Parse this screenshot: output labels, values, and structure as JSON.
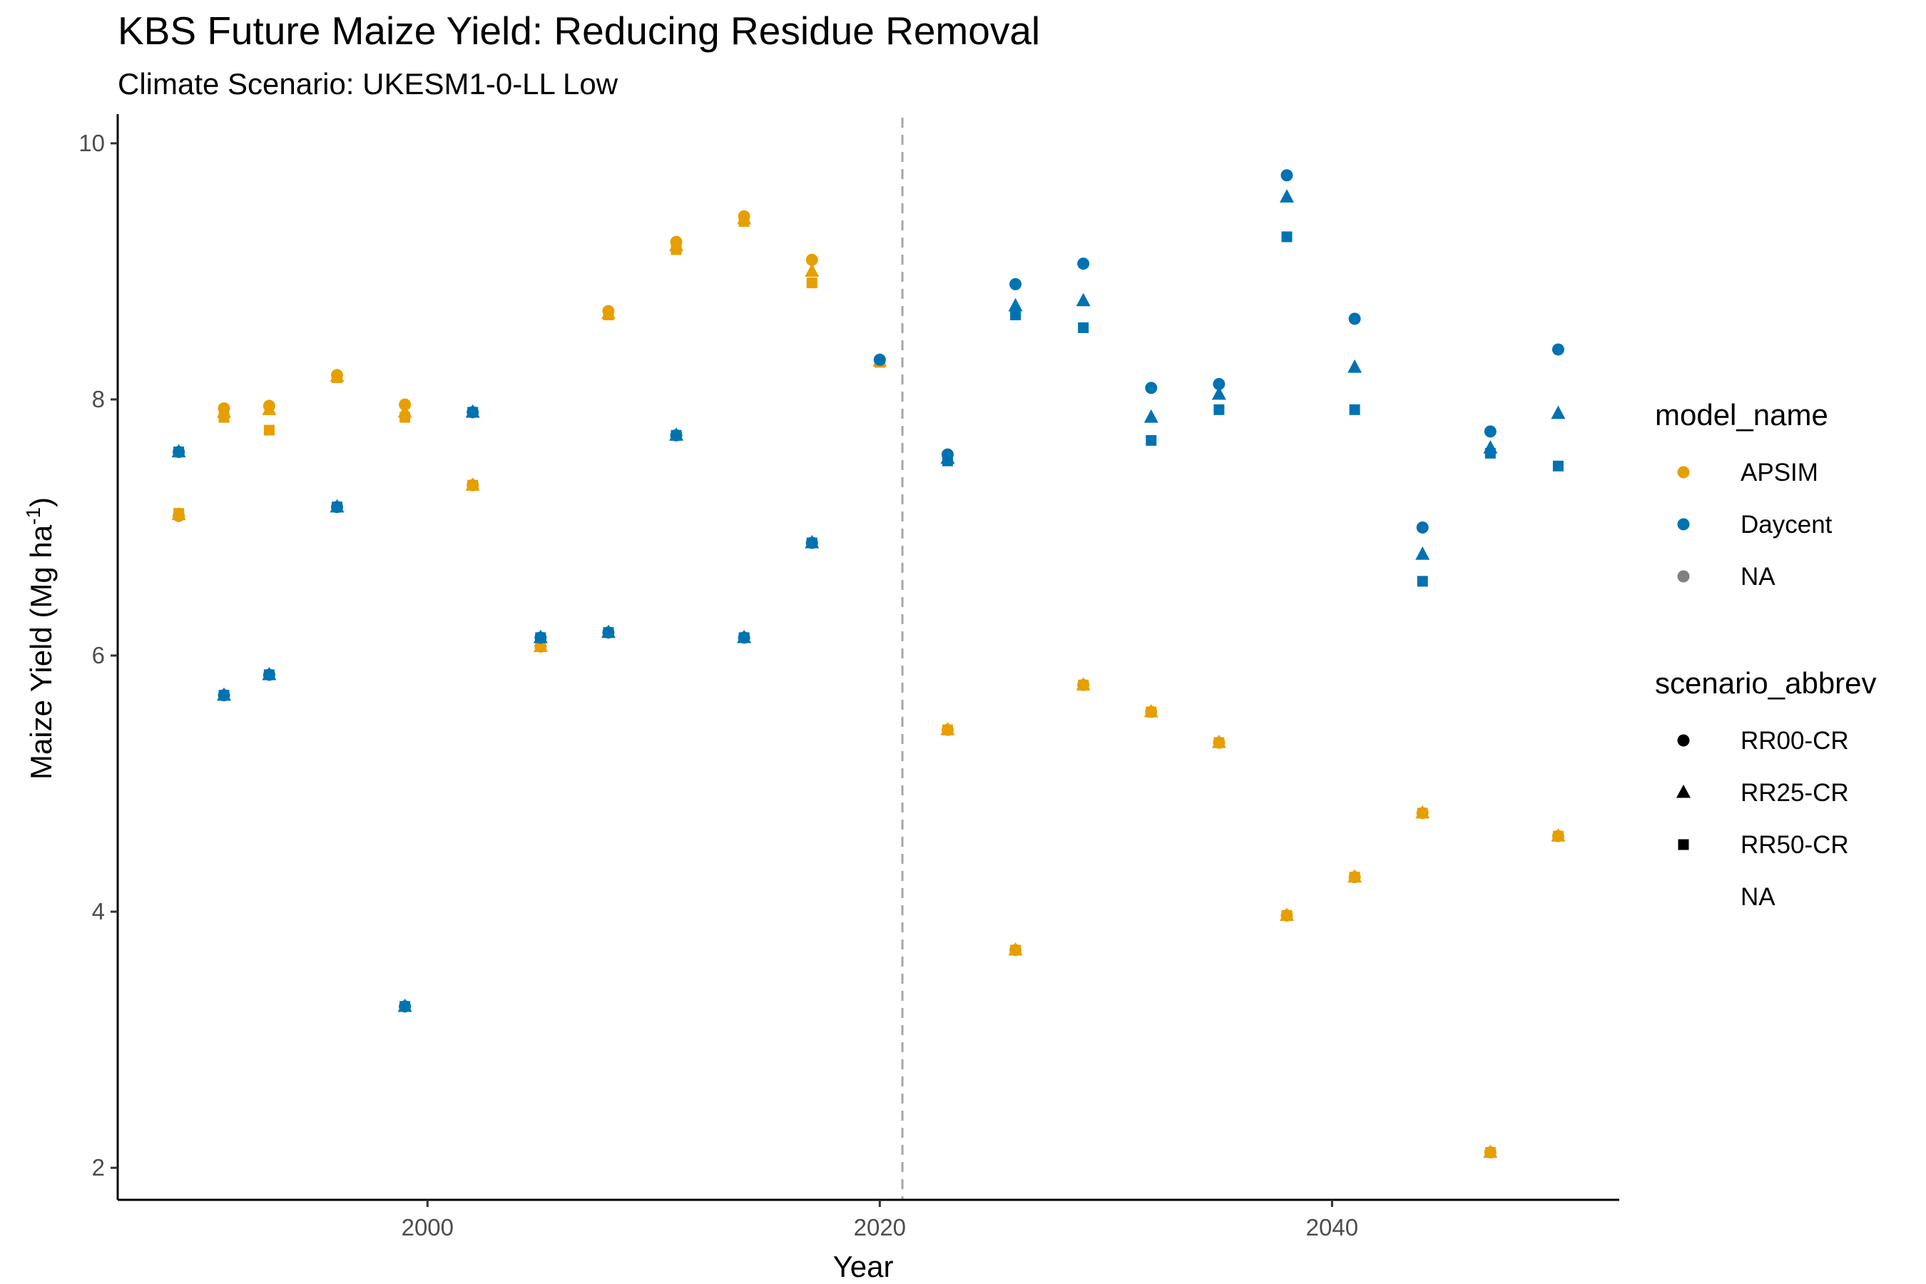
{
  "chart_data": {
    "type": "scatter",
    "title": "KBS Future Maize Yield: Reducing Residue Removal",
    "subtitle": "Climate Scenario: UKESM1-0-LL Low",
    "xlabel": "Year",
    "ylabel": "Maize Yield (Mg ha",
    "ylabel_sup": "-1",
    "ylabel_end": ")",
    "xlim": [
      1986.3,
      2052.7
    ],
    "ylim": [
      1.75,
      10.2
    ],
    "xticks": [
      2000,
      2020,
      2040
    ],
    "yticks": [
      2,
      4,
      6,
      8,
      10
    ],
    "grid": false,
    "vline": {
      "x": 2021,
      "style": "dashed",
      "color": "#a6a6a6"
    },
    "colors": {
      "APSIM": "#E69F00",
      "Daycent": "#0072B2",
      "NA": "#808080"
    },
    "legend": {
      "position": "right",
      "model_title": "model_name",
      "model_items": [
        "APSIM",
        "Daycent",
        "NA"
      ],
      "scenario_title": "scenario_abbrev",
      "scenario_items": [
        {
          "label": "RR00-CR",
          "shape": "circle"
        },
        {
          "label": "RR25-CR",
          "shape": "triangle"
        },
        {
          "label": "RR50-CR",
          "shape": "square"
        },
        {
          "label": "NA",
          "shape": "none"
        }
      ]
    },
    "series": [
      {
        "name": "APSIM",
        "scenario": "RR00-CR",
        "shape": "circle",
        "x": [
          1989,
          1991,
          1993,
          1996,
          1999,
          2002,
          2005,
          2008,
          2011,
          2014,
          2017,
          2020,
          2023,
          2026,
          2029,
          2032,
          2035,
          2038,
          2041,
          2044,
          2047,
          2050
        ],
        "y": [
          7.09,
          7.93,
          7.95,
          8.19,
          7.96,
          7.33,
          6.07,
          8.69,
          9.23,
          9.43,
          9.09,
          8.31,
          5.42,
          3.7,
          5.77,
          5.56,
          5.32,
          3.97,
          4.27,
          4.77,
          2.12,
          4.59
        ]
      },
      {
        "name": "APSIM",
        "scenario": "RR25-CR",
        "shape": "triangle",
        "x": [
          1989,
          1991,
          1993,
          1996,
          1999,
          2002,
          2005,
          2008,
          2011,
          2014,
          2017,
          2020,
          2023,
          2026,
          2029,
          2032,
          2035,
          2038,
          2041,
          2044,
          2047,
          2050
        ],
        "y": [
          7.1,
          7.9,
          7.92,
          8.18,
          7.9,
          7.33,
          6.07,
          8.67,
          9.2,
          9.41,
          9.0,
          8.3,
          5.42,
          3.7,
          5.77,
          5.56,
          5.32,
          3.97,
          4.27,
          4.77,
          2.12,
          4.59
        ]
      },
      {
        "name": "APSIM",
        "scenario": "RR50-CR",
        "shape": "square",
        "x": [
          1989,
          1991,
          1993,
          1996,
          1999,
          2002,
          2005,
          2008,
          2011,
          2014,
          2017,
          2020,
          2023,
          2026,
          2029,
          2032,
          2035,
          2038,
          2041,
          2044,
          2047,
          2050
        ],
        "y": [
          7.11,
          7.86,
          7.76,
          8.17,
          7.86,
          7.33,
          6.07,
          8.66,
          9.17,
          9.39,
          8.91,
          8.29,
          5.42,
          3.7,
          5.77,
          5.56,
          5.32,
          3.97,
          4.27,
          4.77,
          2.12,
          4.59
        ]
      },
      {
        "name": "Daycent",
        "scenario": "RR00-CR",
        "shape": "circle",
        "x": [
          1989,
          1991,
          1993,
          1996,
          1999,
          2002,
          2005,
          2008,
          2011,
          2014,
          2017,
          2020,
          2023,
          2026,
          2029,
          2032,
          2035,
          2038,
          2041,
          2044,
          2047,
          2050
        ],
        "y": [
          7.59,
          5.69,
          5.85,
          7.16,
          3.26,
          7.9,
          6.14,
          6.18,
          7.72,
          6.14,
          6.88,
          8.31,
          7.57,
          8.9,
          9.06,
          8.09,
          8.12,
          9.75,
          8.63,
          7.0,
          7.75,
          8.39
        ]
      },
      {
        "name": "Daycent",
        "scenario": "RR25-CR",
        "shape": "triangle",
        "x": [
          1989,
          1991,
          1993,
          1996,
          1999,
          2002,
          2005,
          2008,
          2011,
          2014,
          2017,
          2023,
          2026,
          2029,
          2032,
          2035,
          2038,
          2041,
          2044,
          2047,
          2050
        ],
        "y": [
          7.59,
          5.69,
          5.85,
          7.16,
          3.26,
          7.9,
          6.14,
          6.18,
          7.72,
          6.14,
          6.88,
          7.54,
          8.73,
          8.77,
          7.86,
          8.04,
          9.58,
          8.25,
          6.79,
          7.62,
          7.89
        ]
      },
      {
        "name": "Daycent",
        "scenario": "RR50-CR",
        "shape": "square",
        "x": [
          1989,
          1991,
          1993,
          1996,
          1999,
          2002,
          2005,
          2008,
          2011,
          2014,
          2017,
          2023,
          2026,
          2029,
          2032,
          2035,
          2038,
          2041,
          2044,
          2047,
          2050
        ],
        "y": [
          7.59,
          5.69,
          5.85,
          7.16,
          3.26,
          7.9,
          6.14,
          6.18,
          7.72,
          6.14,
          6.88,
          7.52,
          8.66,
          8.56,
          7.68,
          7.92,
          9.27,
          7.92,
          6.58,
          7.58,
          7.48
        ]
      }
    ]
  }
}
